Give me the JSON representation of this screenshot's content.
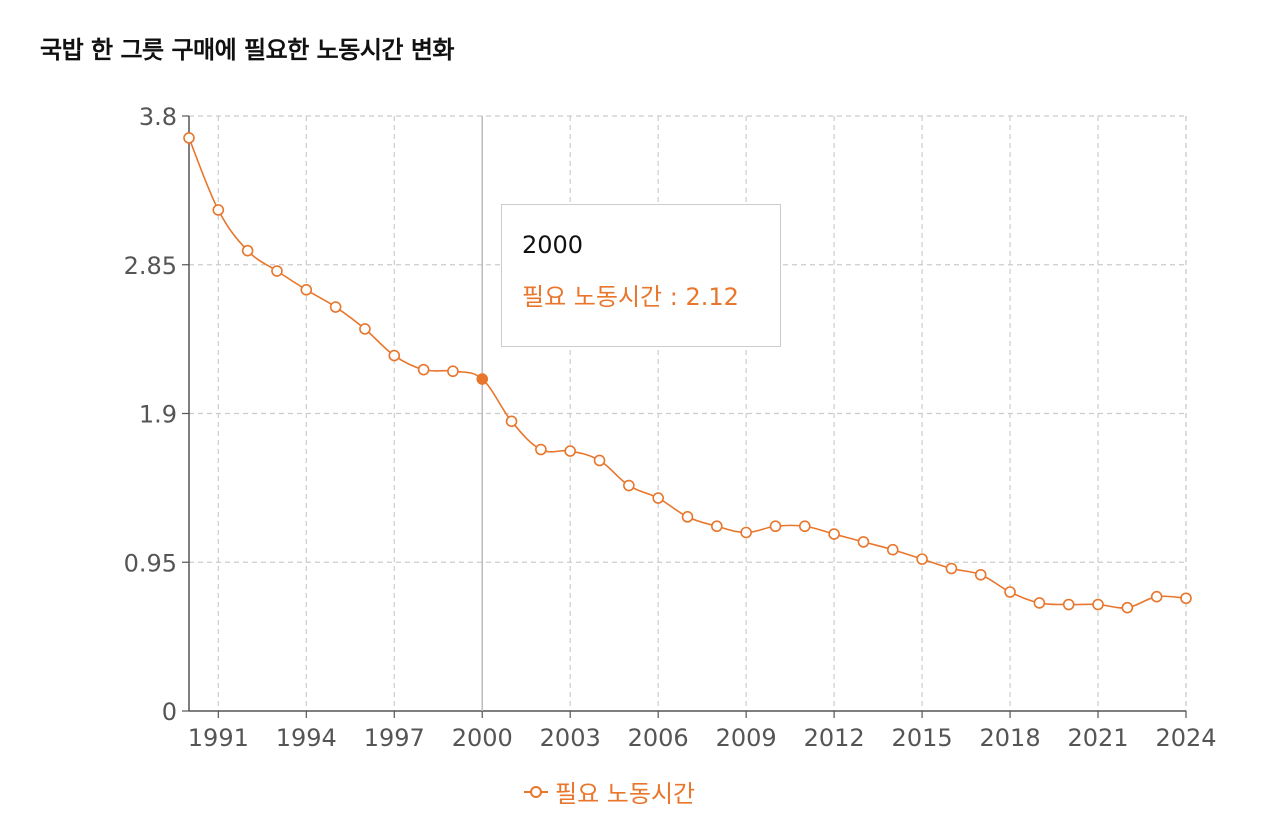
{
  "chart_data": {
    "type": "line",
    "title": "국밥 한 그릇 구매에 필요한 노동시간 변화",
    "xlabel": "",
    "ylabel": "",
    "x": [
      1990,
      1991,
      1992,
      1993,
      1994,
      1995,
      1996,
      1997,
      1998,
      1999,
      2000,
      2001,
      2002,
      2003,
      2004,
      2005,
      2006,
      2007,
      2008,
      2009,
      2010,
      2011,
      2012,
      2013,
      2014,
      2015,
      2016,
      2017,
      2018,
      2019,
      2020,
      2021,
      2022,
      2023,
      2024
    ],
    "x_tick_labels": [
      "1991",
      "1994",
      "1997",
      "2000",
      "2003",
      "2006",
      "2009",
      "2012",
      "2015",
      "2018",
      "2021",
      "2024"
    ],
    "y_ticks": [
      0,
      0.95,
      1.9,
      2.85,
      3.8
    ],
    "y_tick_labels": [
      "0",
      "0.95",
      "1.9",
      "2.85",
      "3.8"
    ],
    "ylim": [
      0,
      3.8
    ],
    "grid": true,
    "series": [
      {
        "name": "필요 노동시간",
        "color": "#e8762c",
        "values": [
          3.66,
          3.2,
          2.94,
          2.81,
          2.69,
          2.58,
          2.44,
          2.27,
          2.18,
          2.17,
          2.12,
          1.85,
          1.67,
          1.66,
          1.6,
          1.44,
          1.36,
          1.24,
          1.18,
          1.14,
          1.18,
          1.18,
          1.13,
          1.08,
          1.03,
          0.97,
          0.91,
          0.87,
          0.76,
          0.69,
          0.68,
          0.68,
          0.66,
          0.73,
          0.72
        ]
      }
    ],
    "tooltip": {
      "x_label": "2000",
      "series_name": "필요 노동시간",
      "separator": " : ",
      "value": "2.12",
      "highlight_x": 2000
    },
    "legend": {
      "label": "필요 노동시간",
      "position": "bottom-center"
    }
  }
}
